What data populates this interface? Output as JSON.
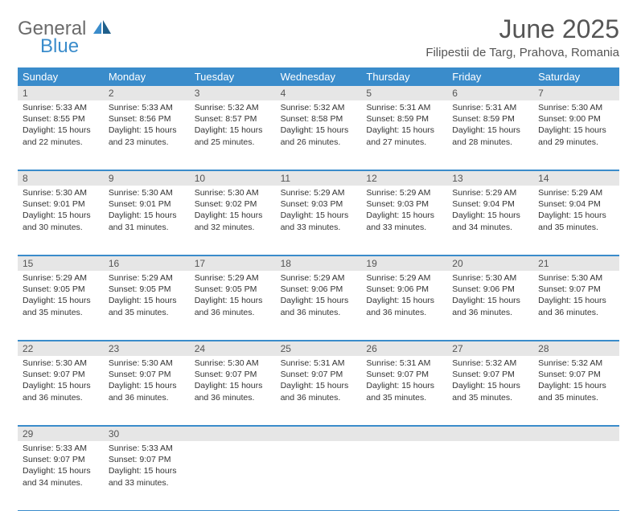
{
  "brand": {
    "line1": "General",
    "line2": "Blue",
    "color_general": "#6b6b6b",
    "color_blue": "#3a8ccb"
  },
  "title": "June 2025",
  "subtitle": "Filipestii de Targ, Prahova, Romania",
  "colors": {
    "header_bg": "#3a8ccb",
    "header_fg": "#ffffff",
    "daynum_bg": "#e6e6e6",
    "rule": "#3a8ccb",
    "text": "#333333",
    "title_fg": "#555555"
  },
  "day_labels": [
    "Sunday",
    "Monday",
    "Tuesday",
    "Wednesday",
    "Thursday",
    "Friday",
    "Saturday"
  ],
  "weeks": [
    [
      {
        "n": "1",
        "sunrise": "5:33 AM",
        "sunset": "8:55 PM",
        "dl": "15 hours and 22 minutes."
      },
      {
        "n": "2",
        "sunrise": "5:33 AM",
        "sunset": "8:56 PM",
        "dl": "15 hours and 23 minutes."
      },
      {
        "n": "3",
        "sunrise": "5:32 AM",
        "sunset": "8:57 PM",
        "dl": "15 hours and 25 minutes."
      },
      {
        "n": "4",
        "sunrise": "5:32 AM",
        "sunset": "8:58 PM",
        "dl": "15 hours and 26 minutes."
      },
      {
        "n": "5",
        "sunrise": "5:31 AM",
        "sunset": "8:59 PM",
        "dl": "15 hours and 27 minutes."
      },
      {
        "n": "6",
        "sunrise": "5:31 AM",
        "sunset": "8:59 PM",
        "dl": "15 hours and 28 minutes."
      },
      {
        "n": "7",
        "sunrise": "5:30 AM",
        "sunset": "9:00 PM",
        "dl": "15 hours and 29 minutes."
      }
    ],
    [
      {
        "n": "8",
        "sunrise": "5:30 AM",
        "sunset": "9:01 PM",
        "dl": "15 hours and 30 minutes."
      },
      {
        "n": "9",
        "sunrise": "5:30 AM",
        "sunset": "9:01 PM",
        "dl": "15 hours and 31 minutes."
      },
      {
        "n": "10",
        "sunrise": "5:30 AM",
        "sunset": "9:02 PM",
        "dl": "15 hours and 32 minutes."
      },
      {
        "n": "11",
        "sunrise": "5:29 AM",
        "sunset": "9:03 PM",
        "dl": "15 hours and 33 minutes."
      },
      {
        "n": "12",
        "sunrise": "5:29 AM",
        "sunset": "9:03 PM",
        "dl": "15 hours and 33 minutes."
      },
      {
        "n": "13",
        "sunrise": "5:29 AM",
        "sunset": "9:04 PM",
        "dl": "15 hours and 34 minutes."
      },
      {
        "n": "14",
        "sunrise": "5:29 AM",
        "sunset": "9:04 PM",
        "dl": "15 hours and 35 minutes."
      }
    ],
    [
      {
        "n": "15",
        "sunrise": "5:29 AM",
        "sunset": "9:05 PM",
        "dl": "15 hours and 35 minutes."
      },
      {
        "n": "16",
        "sunrise": "5:29 AM",
        "sunset": "9:05 PM",
        "dl": "15 hours and 35 minutes."
      },
      {
        "n": "17",
        "sunrise": "5:29 AM",
        "sunset": "9:05 PM",
        "dl": "15 hours and 36 minutes."
      },
      {
        "n": "18",
        "sunrise": "5:29 AM",
        "sunset": "9:06 PM",
        "dl": "15 hours and 36 minutes."
      },
      {
        "n": "19",
        "sunrise": "5:29 AM",
        "sunset": "9:06 PM",
        "dl": "15 hours and 36 minutes."
      },
      {
        "n": "20",
        "sunrise": "5:30 AM",
        "sunset": "9:06 PM",
        "dl": "15 hours and 36 minutes."
      },
      {
        "n": "21",
        "sunrise": "5:30 AM",
        "sunset": "9:07 PM",
        "dl": "15 hours and 36 minutes."
      }
    ],
    [
      {
        "n": "22",
        "sunrise": "5:30 AM",
        "sunset": "9:07 PM",
        "dl": "15 hours and 36 minutes."
      },
      {
        "n": "23",
        "sunrise": "5:30 AM",
        "sunset": "9:07 PM",
        "dl": "15 hours and 36 minutes."
      },
      {
        "n": "24",
        "sunrise": "5:30 AM",
        "sunset": "9:07 PM",
        "dl": "15 hours and 36 minutes."
      },
      {
        "n": "25",
        "sunrise": "5:31 AM",
        "sunset": "9:07 PM",
        "dl": "15 hours and 36 minutes."
      },
      {
        "n": "26",
        "sunrise": "5:31 AM",
        "sunset": "9:07 PM",
        "dl": "15 hours and 35 minutes."
      },
      {
        "n": "27",
        "sunrise": "5:32 AM",
        "sunset": "9:07 PM",
        "dl": "15 hours and 35 minutes."
      },
      {
        "n": "28",
        "sunrise": "5:32 AM",
        "sunset": "9:07 PM",
        "dl": "15 hours and 35 minutes."
      }
    ],
    [
      {
        "n": "29",
        "sunrise": "5:33 AM",
        "sunset": "9:07 PM",
        "dl": "15 hours and 34 minutes."
      },
      {
        "n": "30",
        "sunrise": "5:33 AM",
        "sunset": "9:07 PM",
        "dl": "15 hours and 33 minutes."
      },
      null,
      null,
      null,
      null,
      null
    ]
  ],
  "labels": {
    "sunrise": "Sunrise: ",
    "sunset": "Sunset: ",
    "daylight": "Daylight: "
  }
}
